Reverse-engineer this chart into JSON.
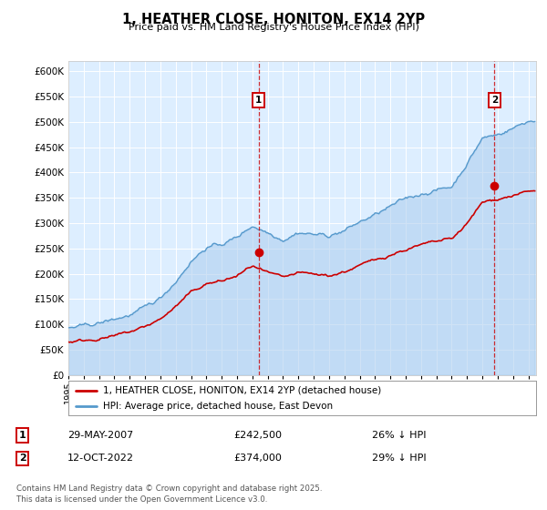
{
  "title": "1, HEATHER CLOSE, HONITON, EX14 2YP",
  "subtitle": "Price paid vs. HM Land Registry's House Price Index (HPI)",
  "ylim": [
    0,
    620000
  ],
  "xlim_start": 1995.0,
  "xlim_end": 2025.5,
  "plot_bg_color": "#ddeeff",
  "hpi_color": "#5599cc",
  "hpi_fill_color": "#aaccee",
  "price_color": "#cc0000",
  "marker1_date": 2007.41,
  "marker1_price": 242500,
  "marker2_date": 2022.78,
  "marker2_price": 374000,
  "legend_line1": "1, HEATHER CLOSE, HONITON, EX14 2YP (detached house)",
  "legend_line2": "HPI: Average price, detached house, East Devon",
  "footer": "Contains HM Land Registry data © Crown copyright and database right 2025.\nThis data is licensed under the Open Government Licence v3.0.",
  "xtick_years": [
    1995,
    1996,
    1997,
    1998,
    1999,
    2000,
    2001,
    2002,
    2003,
    2004,
    2005,
    2006,
    2007,
    2008,
    2009,
    2010,
    2011,
    2012,
    2013,
    2014,
    2015,
    2016,
    2017,
    2018,
    2019,
    2020,
    2021,
    2022,
    2023,
    2024,
    2025
  ],
  "hpi_anchors_years": [
    1995,
    1996,
    1997,
    1998,
    1999,
    2000,
    2001,
    2002,
    2003,
    2004,
    2005,
    2006,
    2007,
    2008,
    2009,
    2010,
    2011,
    2012,
    2013,
    2014,
    2015,
    2016,
    2017,
    2018,
    2019,
    2020,
    2021,
    2022,
    2023,
    2024,
    2025
  ],
  "hpi_anchors_vals": [
    92000,
    96000,
    102000,
    110000,
    118000,
    132000,
    152000,
    185000,
    225000,
    252000,
    258000,
    272000,
    295000,
    282000,
    268000,
    282000,
    278000,
    275000,
    285000,
    302000,
    316000,
    332000,
    348000,
    358000,
    365000,
    372000,
    418000,
    468000,
    475000,
    488000,
    502000
  ],
  "price_anchors_years": [
    1995,
    1996,
    1997,
    1998,
    1999,
    2000,
    2001,
    2002,
    2003,
    2004,
    2005,
    2006,
    2007,
    2008,
    2009,
    2010,
    2011,
    2012,
    2013,
    2014,
    2015,
    2016,
    2017,
    2018,
    2019,
    2020,
    2021,
    2022,
    2023,
    2024,
    2025
  ],
  "price_anchors_vals": [
    65000,
    68000,
    72000,
    76000,
    84000,
    95000,
    110000,
    135000,
    162000,
    180000,
    185000,
    195000,
    215000,
    200000,
    190000,
    200000,
    198000,
    196000,
    204000,
    216000,
    226000,
    238000,
    248000,
    256000,
    262000,
    268000,
    298000,
    340000,
    348000,
    355000,
    362000
  ]
}
